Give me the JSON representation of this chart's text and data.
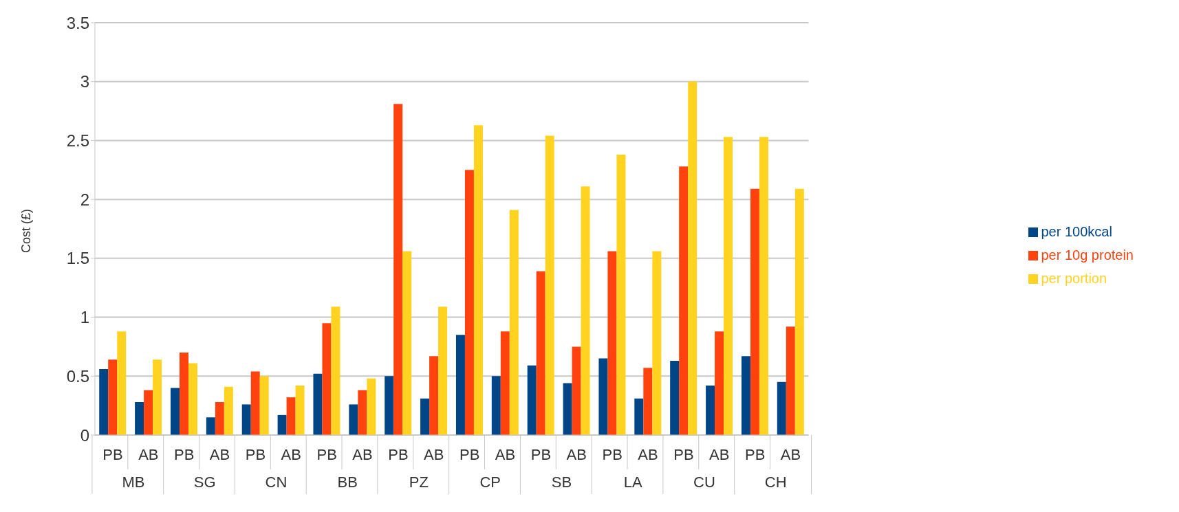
{
  "chart_data": {
    "type": "bar",
    "ylabel": "Cost (£)",
    "categories": [
      "PB",
      "AB",
      "PB",
      "AB",
      "PB",
      "AB",
      "PB",
      "AB",
      "PB",
      "AB",
      "PB",
      "AB",
      "PB",
      "AB",
      "PB",
      "AB",
      "PB",
      "AB",
      "PB",
      "AB"
    ],
    "annotations": [
      "MB",
      "SG",
      "CN",
      "BB",
      "PZ",
      "CP",
      "SB",
      "LA",
      "CU",
      "CH"
    ],
    "series": [
      {
        "name": "per 100kcal",
        "color": "#004586",
        "values": [
          0.56,
          0.28,
          0.4,
          0.15,
          0.26,
          0.17,
          0.52,
          0.26,
          0.5,
          0.31,
          0.85,
          0.5,
          0.59,
          0.44,
          0.65,
          0.31,
          0.63,
          0.42,
          0.67,
          0.45
        ]
      },
      {
        "name": "per 10g protein",
        "color": "#ff420e",
        "values": [
          0.64,
          0.38,
          0.7,
          0.28,
          0.54,
          0.32,
          0.95,
          0.38,
          2.81,
          0.67,
          2.25,
          0.88,
          1.39,
          0.75,
          1.56,
          0.57,
          2.28,
          0.88,
          2.09,
          0.92
        ]
      },
      {
        "name": "per portion",
        "color": "#ffd320",
        "values": [
          0.88,
          0.64,
          0.61,
          0.41,
          0.5,
          0.42,
          1.09,
          0.48,
          1.56,
          1.09,
          2.63,
          1.91,
          2.54,
          2.11,
          2.38,
          1.56,
          3.0,
          2.53,
          2.53,
          2.09
        ]
      }
    ],
    "ylim": [
      0,
      3.5
    ],
    "yticks": [
      0,
      0.5,
      1,
      1.5,
      2,
      2.5,
      3,
      3.5
    ],
    "grid": "y",
    "legend": "right"
  }
}
